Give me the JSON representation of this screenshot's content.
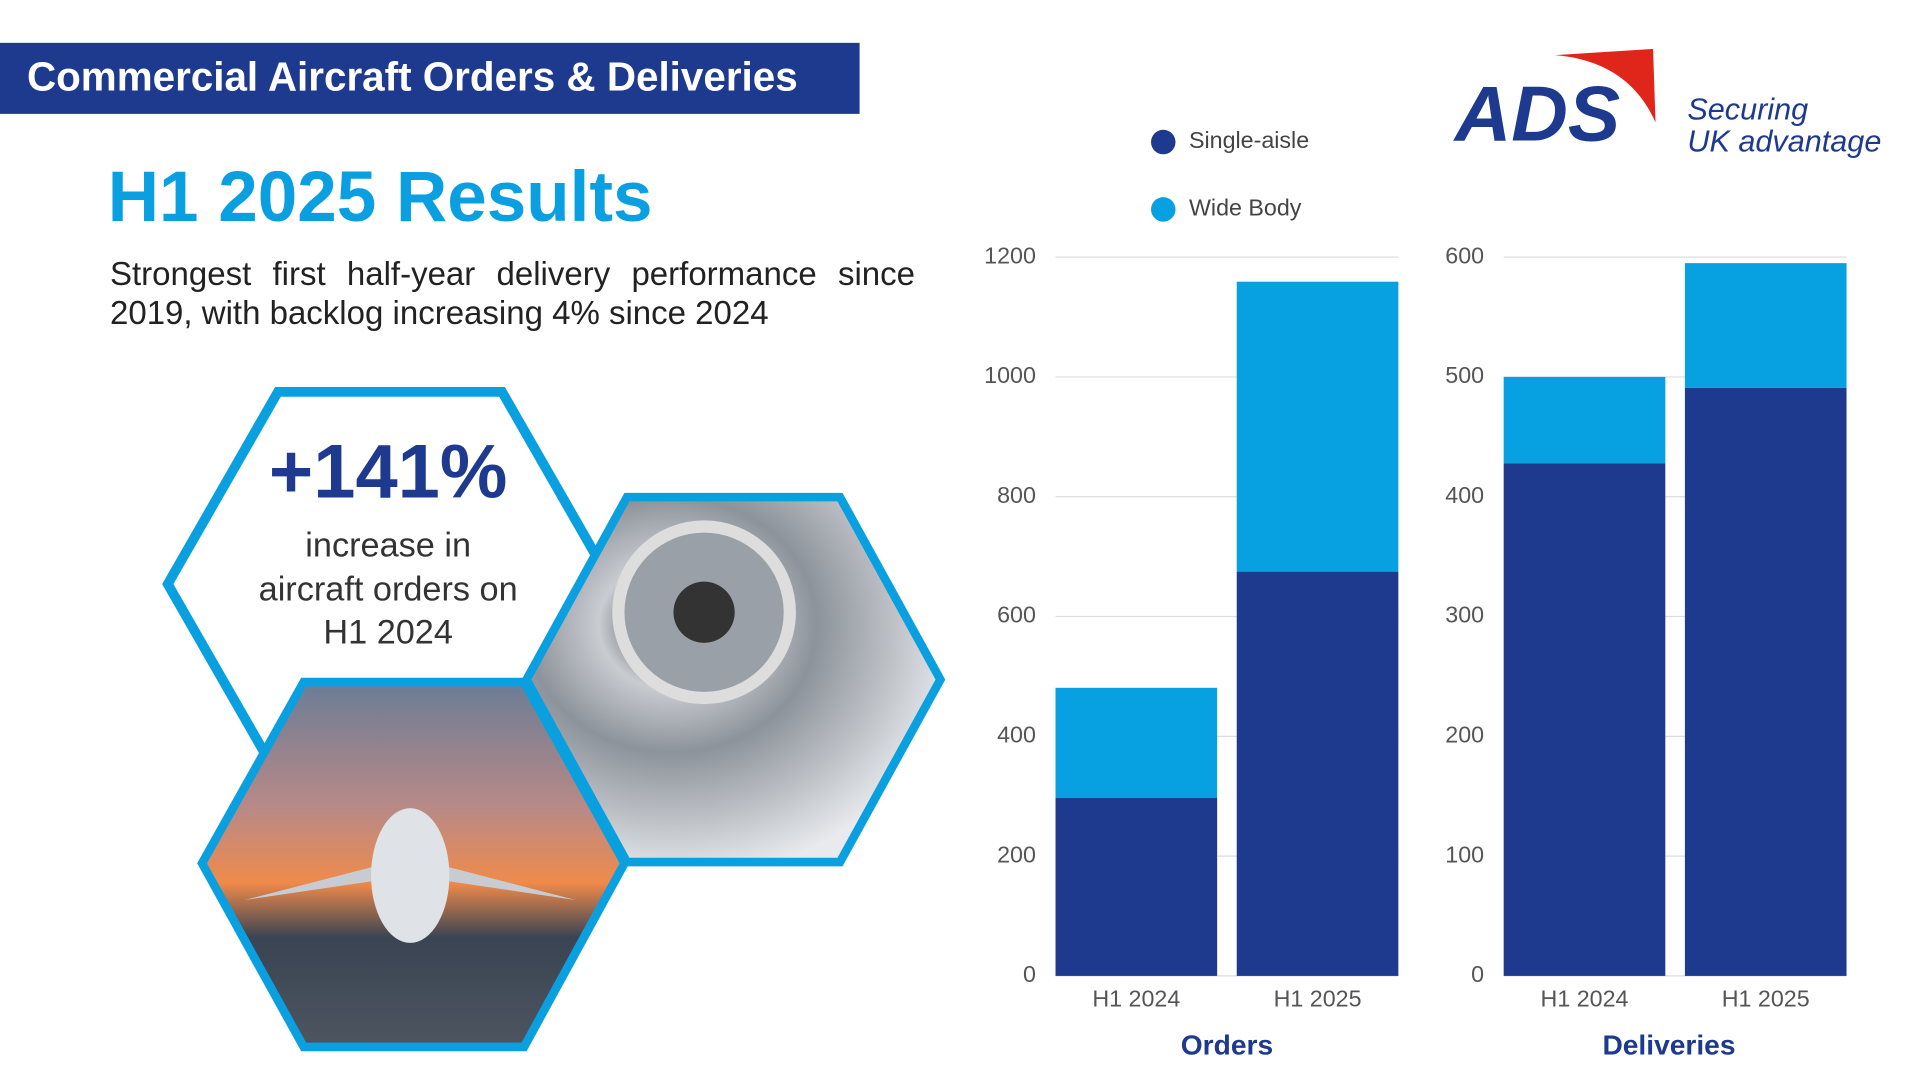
{
  "header": {
    "title": "Commercial Aircraft Orders & Deliveries"
  },
  "heading": "H1 2025 Results",
  "subtitle": "Strongest first half-year delivery performance since 2019, with backlog increasing 4% since 2024",
  "stat": {
    "value": "+141%",
    "lines": [
      "increase in",
      "aircraft orders on",
      "H1 2024"
    ]
  },
  "logo": {
    "name": "ADS",
    "tagline": [
      "Securing",
      "UK advantage"
    ]
  },
  "chart_data": [
    {
      "type": "bar",
      "stacked": true,
      "title": "Orders",
      "categories": [
        "H1 2024",
        "H1 2025"
      ],
      "series": [
        {
          "name": "Single-aisle",
          "color": "#1d3a8f",
          "values": [
            297,
            675
          ]
        },
        {
          "name": "Wide Body",
          "color": "#07a0e1",
          "values": [
            184,
            484
          ]
        }
      ],
      "ylim": [
        0,
        1200
      ],
      "yticks": [
        0,
        200,
        400,
        600,
        800,
        1000,
        1200
      ],
      "grid": true,
      "legend": "top"
    },
    {
      "type": "bar",
      "stacked": true,
      "title": "Deliveries",
      "categories": [
        "H1 2024",
        "H1 2025"
      ],
      "series": [
        {
          "color": "#1d3a8f",
          "values": [
            428,
            491
          ]
        },
        {
          "color": "#07a0e1",
          "values": [
            72,
            104
          ]
        }
      ],
      "ylim": [
        0,
        600
      ],
      "yticks": [
        0,
        100,
        200,
        300,
        400,
        500,
        600
      ],
      "grid": true
    }
  ]
}
